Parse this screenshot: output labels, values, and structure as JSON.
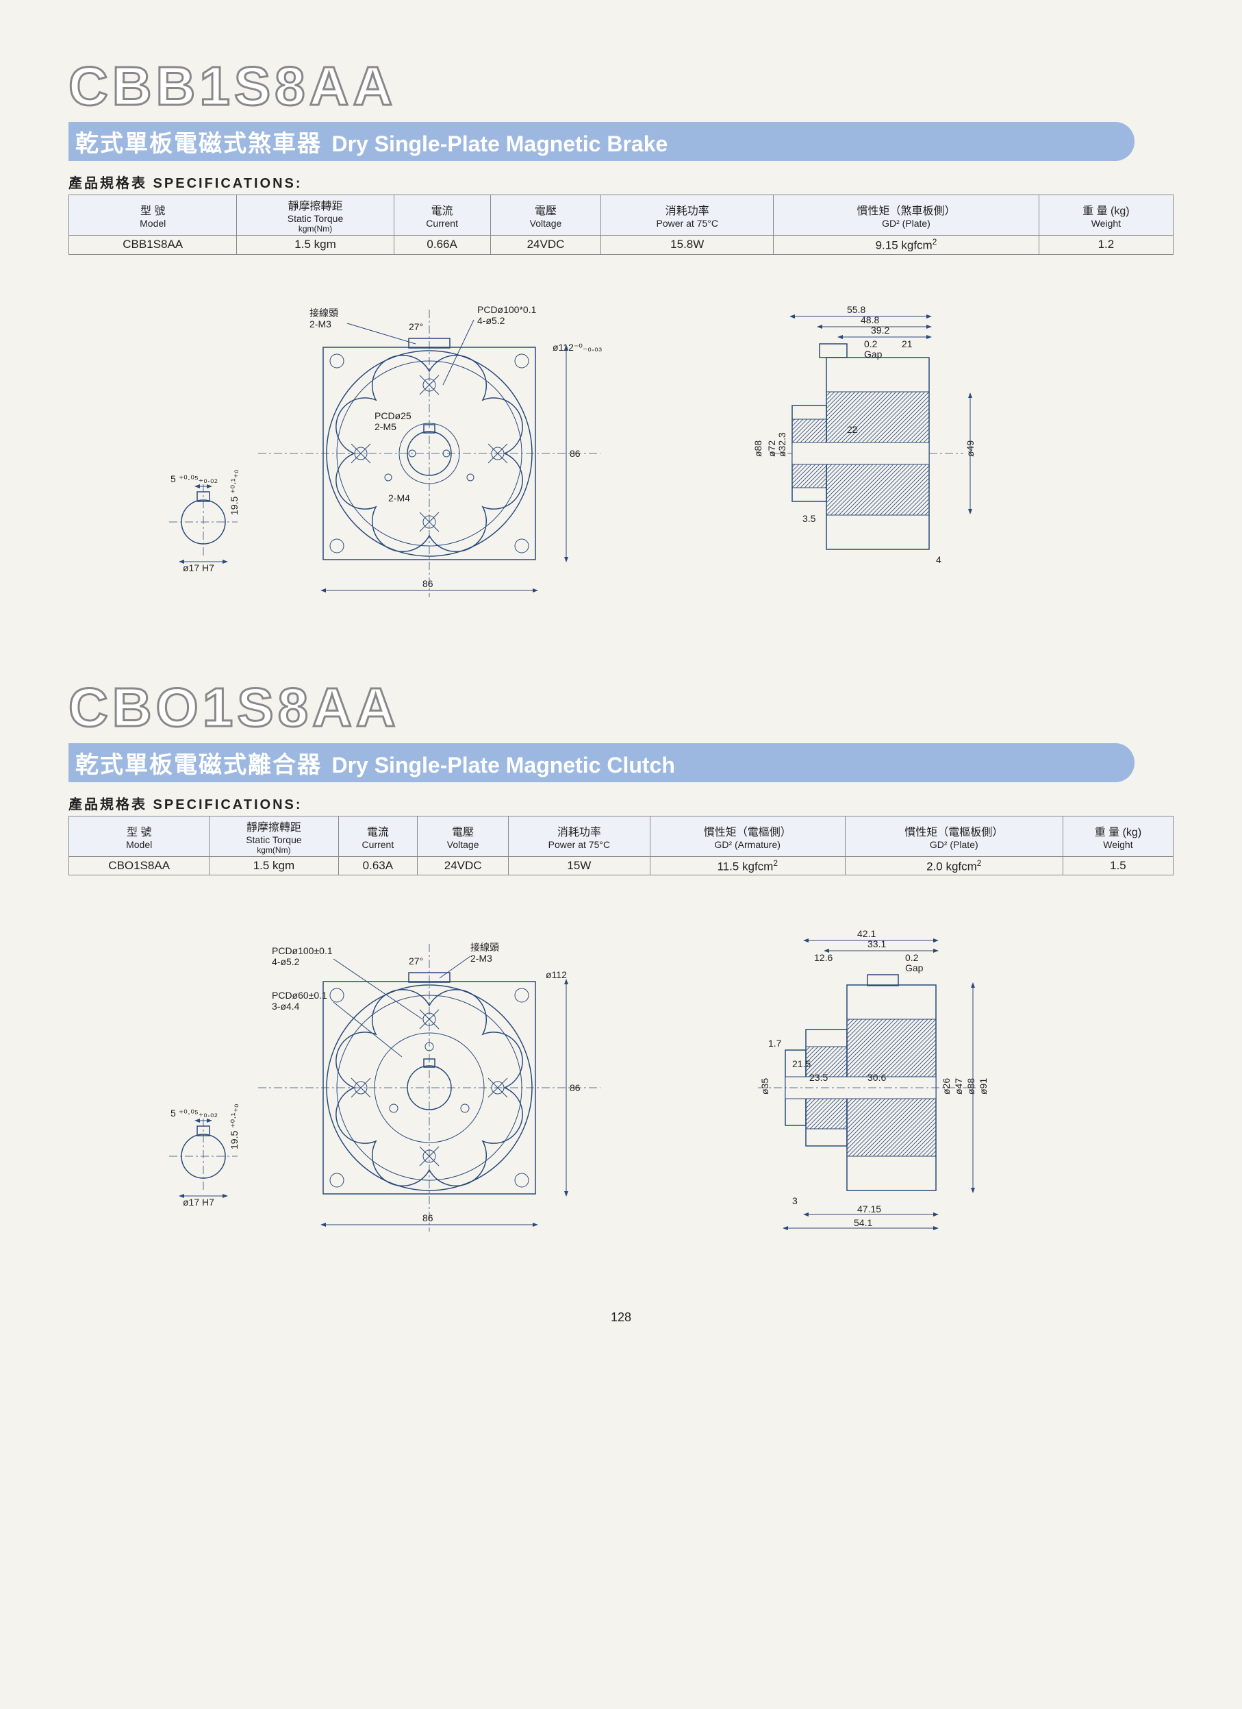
{
  "page_number": "128",
  "products": [
    {
      "title": "CBB1S8AA",
      "subtitle_cn": "乾式單板電磁式煞車器",
      "subtitle_en": "Dry Single-Plate Magnetic Brake",
      "spec_label": "產品規格表 SPECIFICATIONS:",
      "columns": [
        {
          "cn": "型 號",
          "en": "Model",
          "sub": ""
        },
        {
          "cn": "靜摩擦轉距",
          "en": "Static Torque",
          "sub": "kgm(Nm)"
        },
        {
          "cn": "電流",
          "en": "Current",
          "sub": ""
        },
        {
          "cn": "電壓",
          "en": "Voltage",
          "sub": ""
        },
        {
          "cn": "消耗功率",
          "en": "Power at 75°C",
          "sub": ""
        },
        {
          "cn": "慣性矩（煞車板側）",
          "en": "GD² (Plate)",
          "sub": ""
        },
        {
          "cn": "重 量 (kg)",
          "en": "Weight",
          "sub": ""
        }
      ],
      "row": [
        "CBB1S8AA",
        "1.5 kgm",
        "0.66A",
        "24VDC",
        "15.8W",
        "9.15 kgfcm²",
        "1.2"
      ],
      "drawing": {
        "front": {
          "square": 86,
          "outer_dia_label": "ø112⁻⁰₋₀.₀₃",
          "pcd1": "PCDø100*0.1\n4-ø5.2",
          "pcd2": "PCDø25\n2-M5",
          "terminal": "接線頭\n2-M3",
          "angle": "27°",
          "m4": "2-M4",
          "dim86h": "86",
          "dim86v": "86"
        },
        "bore": {
          "key_w": "5 ⁺⁰·⁰⁵₊₀.₀₂",
          "key_h": "19.5 ⁺⁰·¹₊₀",
          "dia": "ø17 H7"
        },
        "side": {
          "top_dims": [
            "55.8",
            "48.8",
            "39.2",
            "0.2",
            "21"
          ],
          "gap": "Gap",
          "dia_dims": [
            "ø88",
            "ø72",
            "ø32.3",
            "ø49"
          ],
          "other": [
            "22",
            "3.5",
            "4"
          ]
        }
      }
    },
    {
      "title": "CBO1S8AA",
      "subtitle_cn": "乾式單板電磁式離合器",
      "subtitle_en": "Dry Single-Plate Magnetic Clutch",
      "spec_label": "產品規格表 SPECIFICATIONS:",
      "columns": [
        {
          "cn": "型 號",
          "en": "Model",
          "sub": ""
        },
        {
          "cn": "靜摩擦轉距",
          "en": "Static Torque",
          "sub": "kgm(Nm)"
        },
        {
          "cn": "電流",
          "en": "Current",
          "sub": ""
        },
        {
          "cn": "電壓",
          "en": "Voltage",
          "sub": ""
        },
        {
          "cn": "消耗功率",
          "en": "Power at 75°C",
          "sub": ""
        },
        {
          "cn": "慣性矩（電樞側）",
          "en": "GD² (Armature)",
          "sub": ""
        },
        {
          "cn": "慣性矩（電樞板側）",
          "en": "GD² (Plate)",
          "sub": ""
        },
        {
          "cn": "重 量 (kg)",
          "en": "Weight",
          "sub": ""
        }
      ],
      "row": [
        "CBO1S8AA",
        "1.5 kgm",
        "0.63A",
        "24VDC",
        "15W",
        "11.5 kgfcm²",
        "2.0 kgfcm²",
        "1.5"
      ],
      "drawing": {
        "front": {
          "square": 86,
          "outer_dia_label": "ø112",
          "pcd1": "PCDø100±0.1\n4-ø5.2",
          "pcd3": "PCDø60±0.1\n3-ø4.4",
          "terminal": "接線頭\n2-M3",
          "angle": "27°",
          "dim86h": "86",
          "dim86v": "86"
        },
        "bore": {
          "key_w": "5 ⁺⁰·⁰⁵₊₀.₀₂",
          "key_h": "19.5 ⁺⁰·¹₊₀",
          "dia": "ø17 H7"
        },
        "side": {
          "top_dims": [
            "42.1",
            "33.1",
            "12.6",
            "0.2"
          ],
          "gap": "Gap",
          "dia_dims": [
            "ø35",
            "ø26",
            "ø47",
            "ø88",
            "ø91"
          ],
          "other": [
            "1.7",
            "21.5",
            "23.5",
            "30.6",
            "3",
            "47.15",
            "54.1"
          ]
        }
      }
    }
  ],
  "colors": {
    "bar": "#9db8e0",
    "line": "#2a4a7a",
    "bg": "#f5f3ee"
  }
}
